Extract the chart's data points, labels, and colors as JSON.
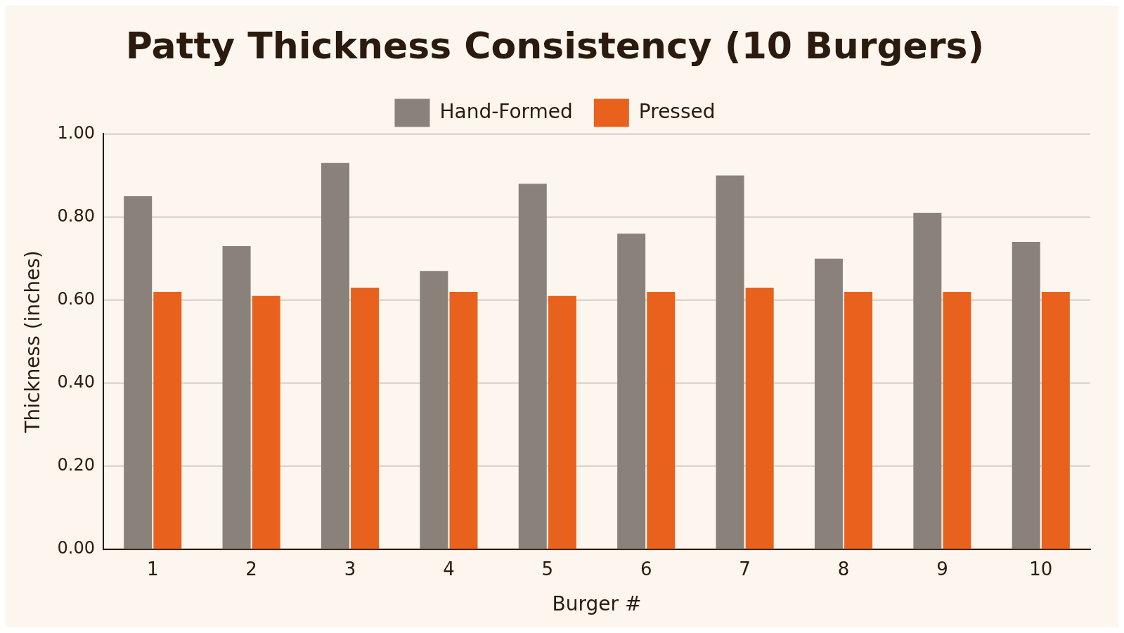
{
  "chart_data": {
    "type": "bar",
    "title": "Patty Thickness Consistency (10 Burgers)",
    "xlabel": "Burger #",
    "ylabel": "Thickness (inches)",
    "categories": [
      "1",
      "2",
      "3",
      "4",
      "5",
      "6",
      "7",
      "8",
      "9",
      "10"
    ],
    "series": [
      {
        "name": "Hand-Formed",
        "color": "#8a817a",
        "values": [
          0.85,
          0.73,
          0.93,
          0.67,
          0.88,
          0.76,
          0.9,
          0.7,
          0.81,
          0.74
        ]
      },
      {
        "name": "Pressed",
        "color": "#e8621e",
        "values": [
          0.62,
          0.61,
          0.63,
          0.62,
          0.61,
          0.62,
          0.63,
          0.62,
          0.62,
          0.62
        ]
      }
    ],
    "ylim": [
      0,
      1
    ],
    "yticks": [
      {
        "value": 0,
        "label": "0.00"
      },
      {
        "value": 0.2,
        "label": "0.20"
      },
      {
        "value": 0.4,
        "label": "0.40"
      },
      {
        "value": 0.6,
        "label": "0.60"
      },
      {
        "value": 0.8,
        "label": "0.80"
      },
      {
        "value": 1,
        "label": "1.00"
      }
    ],
    "grid": "y",
    "legend": "top"
  }
}
